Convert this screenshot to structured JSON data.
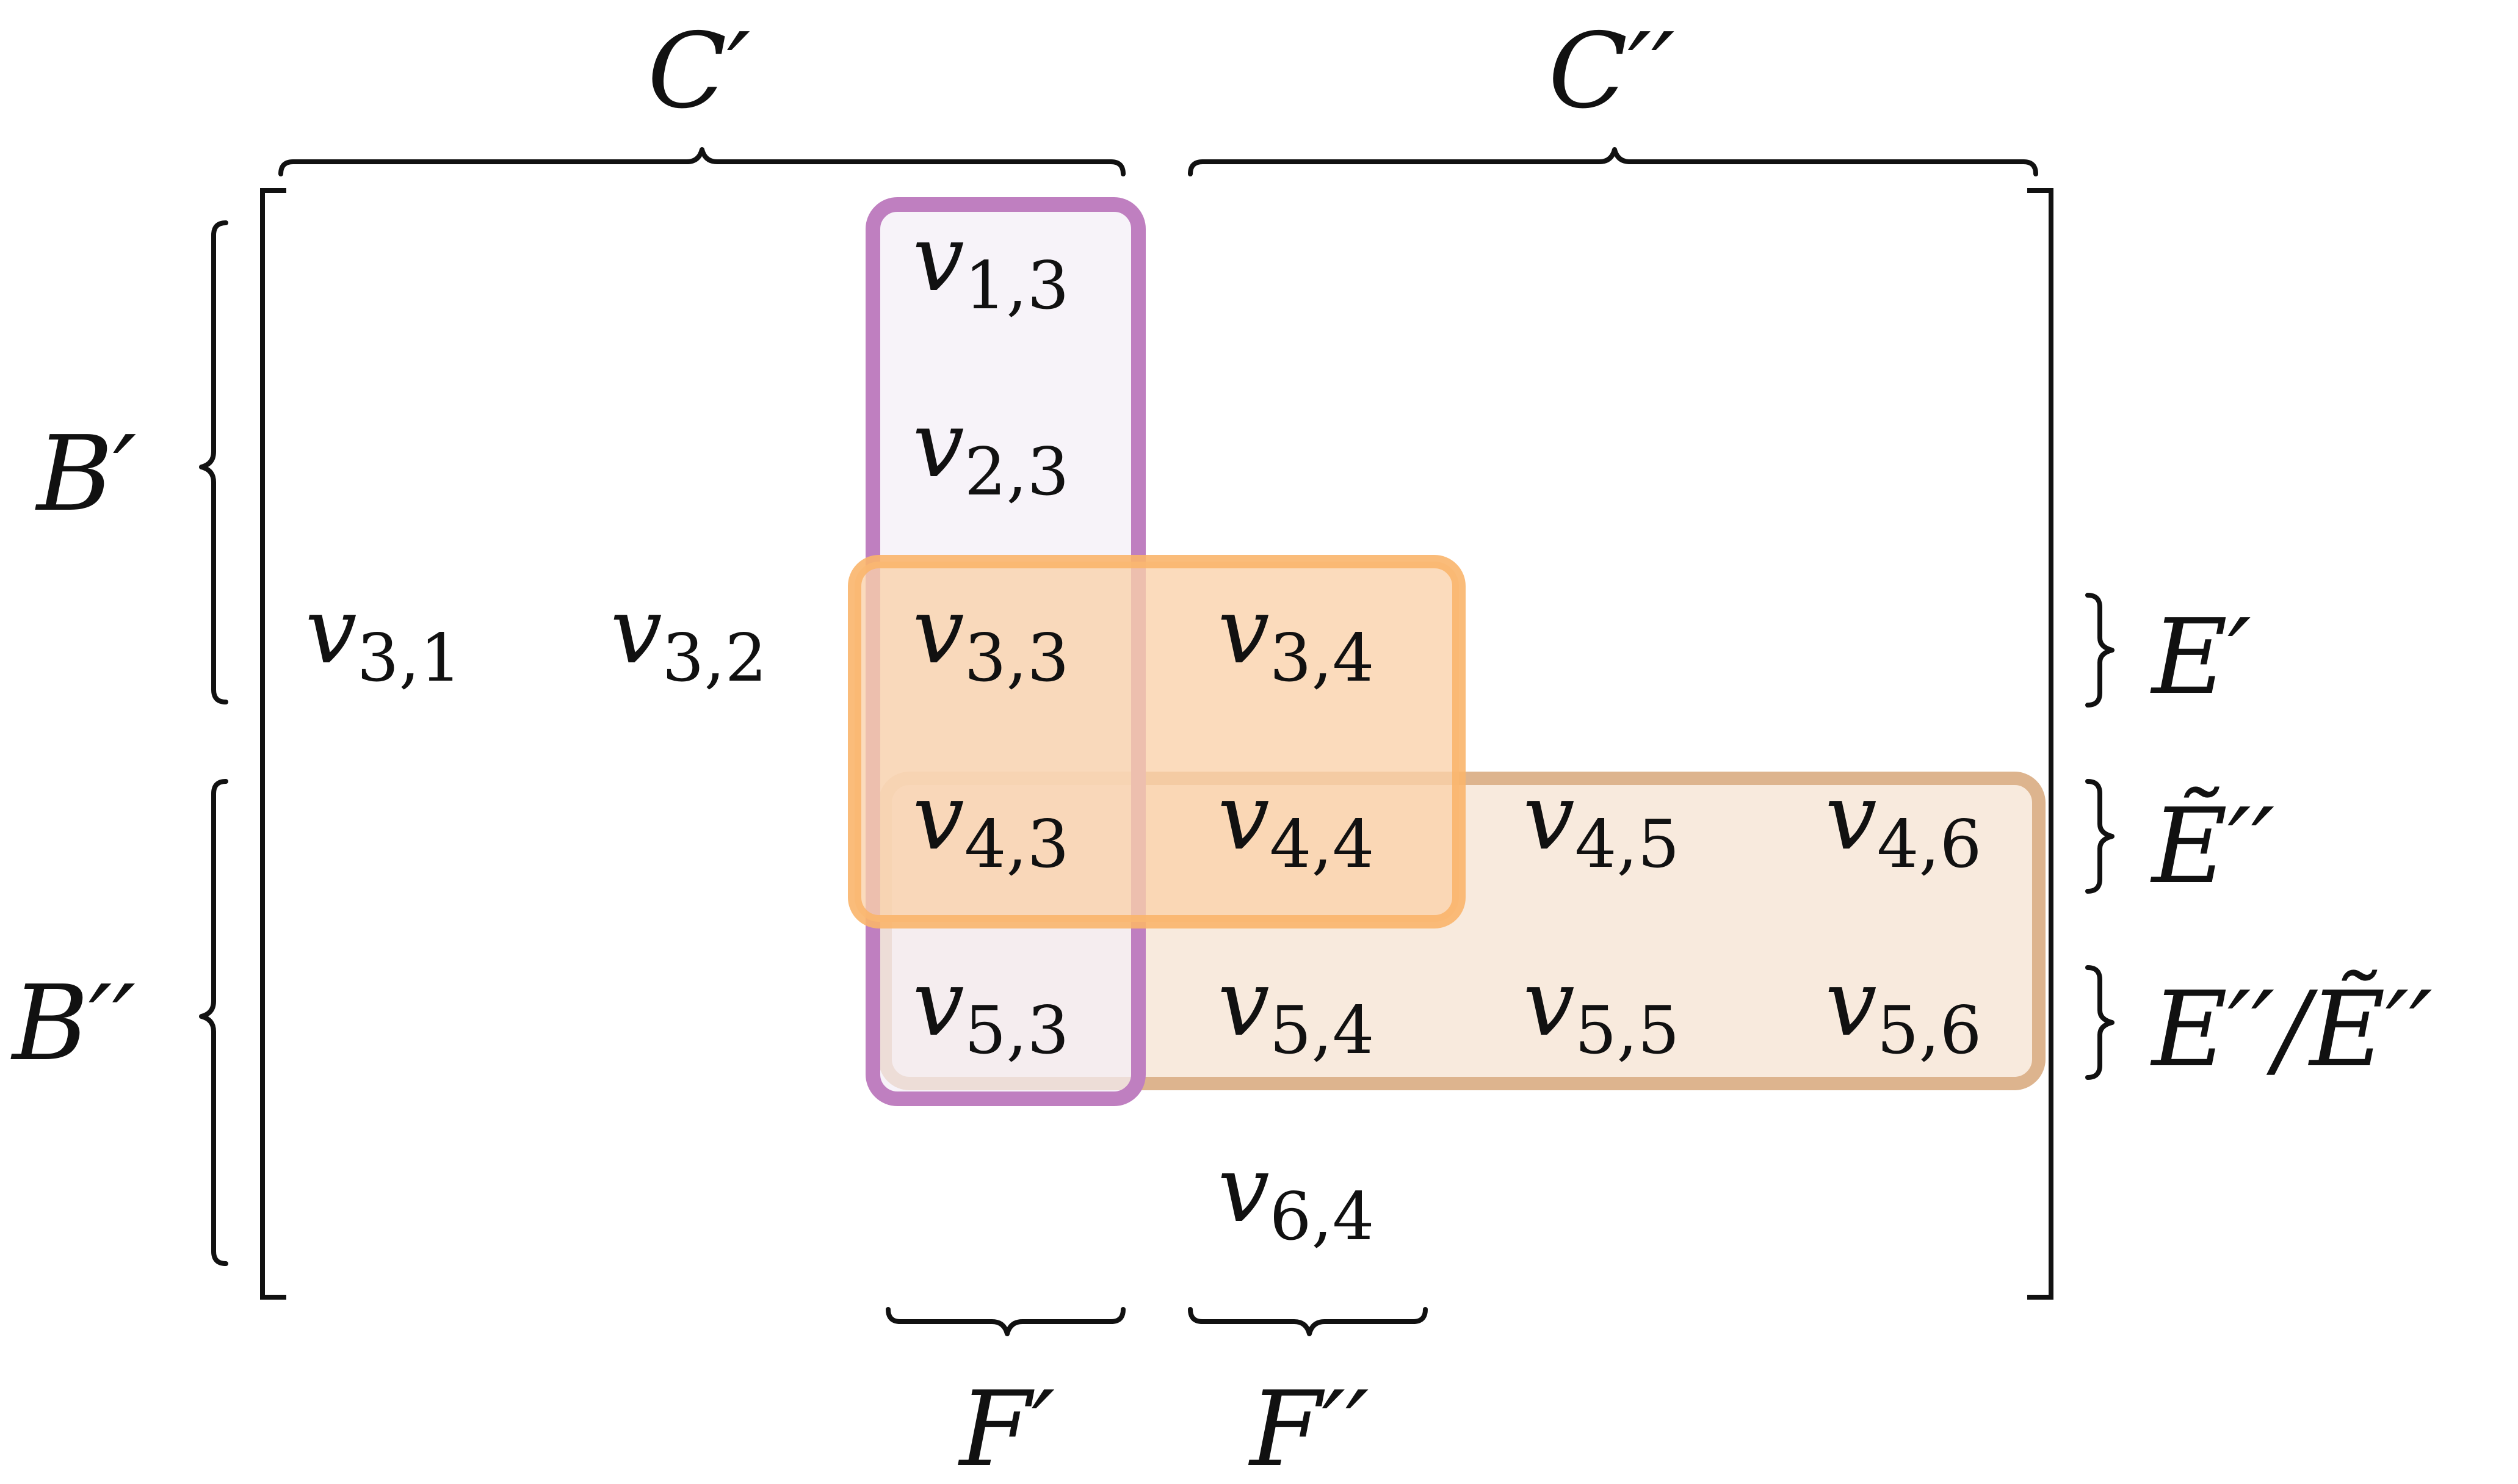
{
  "colors": {
    "purple_fill": "#f4eef6",
    "purple_stroke": "#bf7fc0",
    "orange_fill": "#fad1a9",
    "orange_stroke": "#f9b56b",
    "tan_fill": "#f3dcc6",
    "tan_stroke": "#ddb48e",
    "ink": "#111111"
  },
  "labels": {
    "c_prime": "C′",
    "c_double_prime": "C′′",
    "b_prime": "B′",
    "b_double_prime": "B′′",
    "f_prime": "F′",
    "f_double_prime": "F′′",
    "e_prime": "E′",
    "e_tilde_double_prime": "Ẽ′′",
    "e_double_prime_over_tilde": "E′′/Ẽ′′"
  },
  "entries": [
    {
      "var": "v",
      "sub": "1,3"
    },
    {
      "var": "v",
      "sub": "2,3"
    },
    {
      "var": "v",
      "sub": "3,1"
    },
    {
      "var": "v",
      "sub": "3,2"
    },
    {
      "var": "v",
      "sub": "3,3"
    },
    {
      "var": "v",
      "sub": "3,4"
    },
    {
      "var": "v",
      "sub": "4,3"
    },
    {
      "var": "v",
      "sub": "4,4"
    },
    {
      "var": "v",
      "sub": "4,5"
    },
    {
      "var": "v",
      "sub": "4,6"
    },
    {
      "var": "v",
      "sub": "5,3"
    },
    {
      "var": "v",
      "sub": "5,4"
    },
    {
      "var": "v",
      "sub": "5,5"
    },
    {
      "var": "v",
      "sub": "5,6"
    },
    {
      "var": "v",
      "sub": "6,4"
    }
  ]
}
